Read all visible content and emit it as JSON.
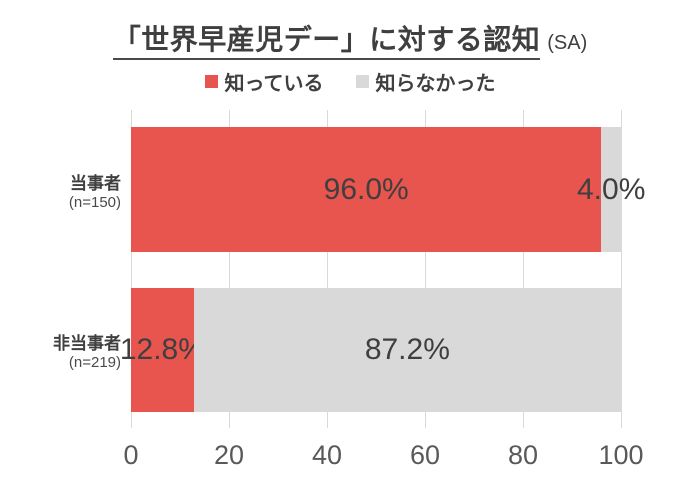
{
  "title": {
    "text": "「世界早産児デー」に対する認知",
    "suffix": "(SA)"
  },
  "chart_data": {
    "type": "bar",
    "orientation": "horizontal",
    "stacked": true,
    "title": "「世界早産児デー」に対する認知 (SA)",
    "categories": [
      "当事者",
      "非当事者"
    ],
    "category_sublabels": [
      "(n=150)",
      "(n=219)"
    ],
    "series": [
      {
        "name": "知っている",
        "color": "#e8544e",
        "values": [
          96.0,
          12.8
        ]
      },
      {
        "name": "知らなかった",
        "color": "#d9d9d9",
        "values": [
          4.0,
          87.2
        ]
      }
    ],
    "value_label_suffix": "%",
    "xlim": [
      0,
      100
    ],
    "x_ticks": [
      0,
      20,
      40,
      60,
      80,
      100
    ],
    "grid": true,
    "legend_position": "top-center"
  },
  "colors": {
    "background": "#ffffff",
    "grid": "#d9d9d9",
    "text_dark": "#3f3f3f",
    "text_gray": "#595959"
  }
}
